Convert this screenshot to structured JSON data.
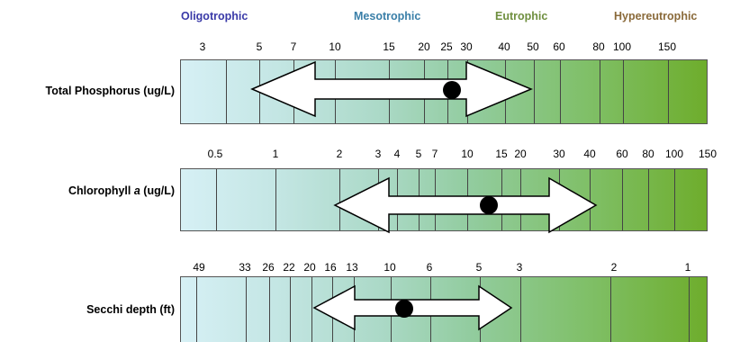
{
  "classes": [
    {
      "label": "Oligotrophic",
      "color": "#3a3aa8"
    },
    {
      "label": "Mesotrophic",
      "color": "#3a7fa8"
    },
    {
      "label": "Eutrophic",
      "color": "#6f8f3f"
    },
    {
      "label": "Hypereutrophic",
      "color": "#8a6a3a"
    }
  ],
  "rows": [
    {
      "label_main": "Total Phosphorus (ug/L)",
      "label_italic": "",
      "label_end": "",
      "ticks": [
        "3",
        "5",
        "7",
        "10",
        "15",
        "20",
        "25",
        "30",
        "40",
        "50",
        "60",
        "80",
        "100",
        "150"
      ]
    },
    {
      "label_main": "Chlorophyll ",
      "label_italic": "a",
      "label_end": " (ug/L)",
      "ticks": [
        "0.5",
        "1",
        "2",
        "3",
        "4",
        "5",
        "7",
        "10",
        "15",
        "20",
        "30",
        "40",
        "60",
        "80",
        "100",
        "150"
      ]
    },
    {
      "label_main": "Secchi depth (ft)",
      "label_italic": "",
      "label_end": "",
      "ticks": [
        "49",
        "33",
        "26",
        "22",
        "20",
        "16",
        "13",
        "10",
        "6",
        "5",
        "3",
        "2",
        "1"
      ]
    }
  ],
  "colors": {
    "gradient_start": "#d6f0f5",
    "gradient_end": "#6ead2c",
    "arrow_fill": "#ffffff",
    "marker": "#000000"
  }
}
